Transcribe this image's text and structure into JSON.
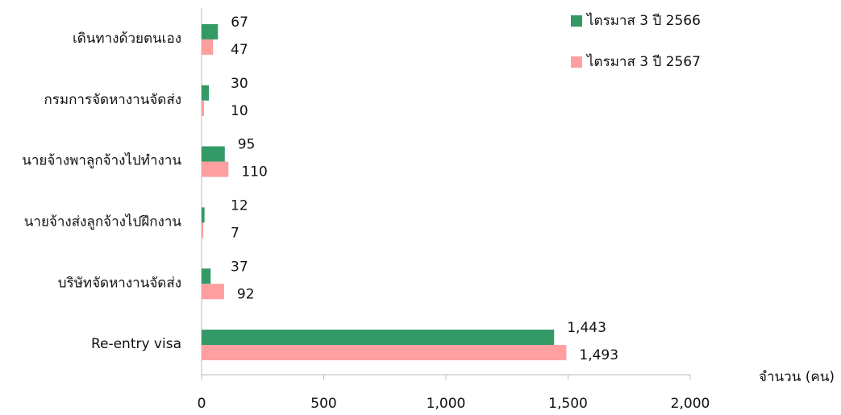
{
  "chart_data": {
    "type": "hbar",
    "categories": [
      "เดินทางด้วยตนเอง",
      "กรมการจัดหางานจัดส่ง",
      "นายจ้างพาลูกจ้างไปทำงาน",
      "นายจ้างส่งลูกจ้างไปฝึกงาน",
      "บริษัทจัดหางานจัดส่ง",
      "Re-entry visa"
    ],
    "series": [
      {
        "name": "ไตรมาส 3 ปี 2566",
        "color": "#339966",
        "values": [
          67,
          30,
          95,
          12,
          37,
          1443
        ],
        "value_labels": [
          "67",
          "30",
          "95",
          "12",
          "37",
          "1,443"
        ]
      },
      {
        "name": "ไตรมาส 3 ปี 2567",
        "color": "#ff9f9f",
        "values": [
          47,
          10,
          110,
          7,
          92,
          1493
        ],
        "value_labels": [
          "47",
          "10",
          "110",
          "7",
          "92",
          "1,493"
        ]
      }
    ],
    "xlabel": "จำนวน (คน)",
    "xlim": [
      0,
      2000
    ],
    "xticks": [
      0,
      500,
      {
        "value": 1000,
        "label": "1,000"
      },
      {
        "value": 1500,
        "label": "1,500"
      },
      {
        "value": 2000,
        "label": "2,000"
      }
    ],
    "legend": "upper right"
  }
}
